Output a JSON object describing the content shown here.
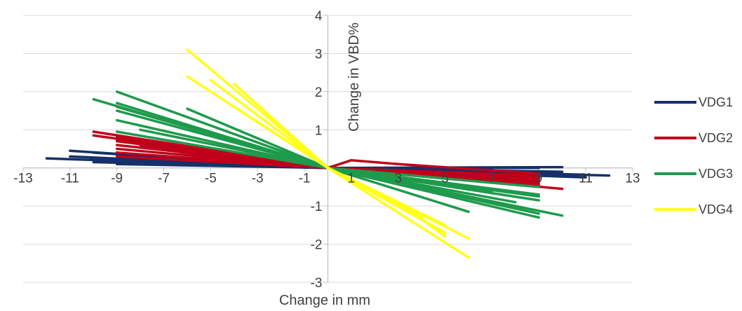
{
  "chart_data": {
    "type": "line",
    "title": "",
    "xlabel": "Change in mm",
    "ylabel": "Change in VBD%",
    "xlim": [
      -13,
      13
    ],
    "ylim": [
      -3,
      4
    ],
    "x_ticks": [
      -13,
      -11,
      -9,
      -7,
      -5,
      -3,
      -1,
      1,
      3,
      5,
      7,
      9,
      11,
      13
    ],
    "x_tick_labels": [
      "-13",
      "-11",
      "-9",
      "-7",
      "-5",
      "-3",
      "-1",
      "1",
      "3",
      "5",
      "7",
      "9",
      "11",
      "13"
    ],
    "y_ticks": [
      -3,
      -2,
      -1,
      1,
      2,
      3,
      4
    ],
    "y_tick_labels": [
      "-3",
      "-2",
      "-1",
      "1",
      "2",
      "3",
      "4"
    ],
    "grid": "horizontal",
    "legend_position": "right",
    "series": [
      {
        "name": "VDG1",
        "color": "#16306a",
        "lines": [
          [
            [
              -12,
              0.25
            ],
            [
              0,
              0
            ],
            [
              12,
              -0.2
            ]
          ],
          [
            [
              -11,
              0.45
            ],
            [
              0,
              0
            ],
            [
              11,
              -0.25
            ]
          ],
          [
            [
              -10,
              0.4
            ],
            [
              0,
              0
            ],
            [
              10,
              0.02
            ]
          ],
          [
            [
              -9,
              0.35
            ],
            [
              0,
              0
            ],
            [
              9,
              0.0
            ]
          ],
          [
            [
              -11,
              0.3
            ],
            [
              0,
              0
            ],
            [
              9,
              -0.3
            ]
          ],
          [
            [
              -9,
              0.1
            ],
            [
              0,
              0
            ],
            [
              9,
              -0.15
            ]
          ],
          [
            [
              -10,
              0.15
            ],
            [
              0,
              0
            ],
            [
              10,
              -0.1
            ]
          ],
          [
            [
              -8,
              0.2
            ],
            [
              0,
              0
            ],
            [
              11,
              -0.18
            ]
          ],
          [
            [
              -9,
              0.4
            ],
            [
              -3,
              0.05
            ],
            [
              0,
              0
            ],
            [
              10,
              -0.22
            ]
          ]
        ]
      },
      {
        "name": "VDG2",
        "color": "#c0001a",
        "lines": [
          [
            [
              -10,
              0.95
            ],
            [
              0,
              0
            ],
            [
              10,
              -0.55
            ]
          ],
          [
            [
              -10,
              0.85
            ],
            [
              0,
              0
            ],
            [
              9,
              -0.45
            ]
          ],
          [
            [
              -9,
              0.8
            ],
            [
              0,
              0
            ],
            [
              9,
              -0.4
            ]
          ],
          [
            [
              -9,
              0.7
            ],
            [
              0,
              0
            ],
            [
              9,
              -0.5
            ]
          ],
          [
            [
              -9,
              0.6
            ],
            [
              0,
              0
            ],
            [
              9,
              -0.35
            ]
          ],
          [
            [
              -9,
              0.5
            ],
            [
              0,
              0
            ],
            [
              9,
              -0.3
            ]
          ],
          [
            [
              -9,
              0.4
            ],
            [
              0,
              0
            ],
            [
              9,
              -0.25
            ]
          ],
          [
            [
              -9,
              0.3
            ],
            [
              0,
              0
            ],
            [
              9,
              -0.2
            ]
          ],
          [
            [
              -8,
              0.6
            ],
            [
              0,
              0
            ],
            [
              9,
              -0.45
            ]
          ],
          [
            [
              -9,
              0.75
            ],
            [
              0,
              0
            ],
            [
              1,
              0.2
            ],
            [
              3,
              0.1
            ],
            [
              9,
              -0.15
            ]
          ]
        ]
      },
      {
        "name": "VDG3",
        "color": "#1e9a4c",
        "lines": [
          [
            [
              -10,
              1.8
            ],
            [
              0,
              0
            ],
            [
              10,
              -1.25
            ]
          ],
          [
            [
              -9,
              2.0
            ],
            [
              0,
              0
            ],
            [
              9,
              -1.3
            ]
          ],
          [
            [
              -9,
              1.7
            ],
            [
              0,
              0
            ],
            [
              9,
              -1.2
            ]
          ],
          [
            [
              -9,
              1.6
            ],
            [
              0,
              0
            ],
            [
              9,
              -0.85
            ]
          ],
          [
            [
              -9,
              1.5
            ],
            [
              0,
              0
            ],
            [
              9,
              -0.75
            ]
          ],
          [
            [
              -9,
              1.25
            ],
            [
              0,
              0
            ],
            [
              9,
              -0.7
            ]
          ],
          [
            [
              -9,
              0.95
            ],
            [
              0,
              0
            ],
            [
              9,
              -0.5
            ]
          ],
          [
            [
              -6,
              1.55
            ],
            [
              0,
              0
            ],
            [
              6,
              -1.15
            ]
          ],
          [
            [
              -8,
              1.0
            ],
            [
              0,
              0
            ],
            [
              7,
              -0.6
            ]
          ],
          [
            [
              -5,
              0.9
            ],
            [
              0,
              0
            ],
            [
              8,
              -0.9
            ]
          ]
        ]
      },
      {
        "name": "VDG4",
        "color": "#ffff1a",
        "lines": [
          [
            [
              -6,
              3.1
            ],
            [
              0,
              0
            ],
            [
              6,
              -2.35
            ]
          ],
          [
            [
              -6,
              2.4
            ],
            [
              0,
              0
            ],
            [
              6,
              -1.85
            ]
          ],
          [
            [
              -5,
              2.3
            ],
            [
              0,
              0
            ],
            [
              5,
              -1.5
            ]
          ],
          [
            [
              -4,
              2.2
            ],
            [
              0,
              0
            ],
            [
              5,
              -1.7
            ]
          ],
          [
            [
              -3,
              1.2
            ],
            [
              0,
              0
            ],
            [
              4,
              -1.3
            ]
          ],
          [
            [
              -4,
              1.6
            ],
            [
              -1.5,
              0.6
            ],
            [
              0,
              0
            ],
            [
              3,
              -0.9
            ],
            [
              5,
              -1.8
            ]
          ]
        ]
      }
    ]
  }
}
